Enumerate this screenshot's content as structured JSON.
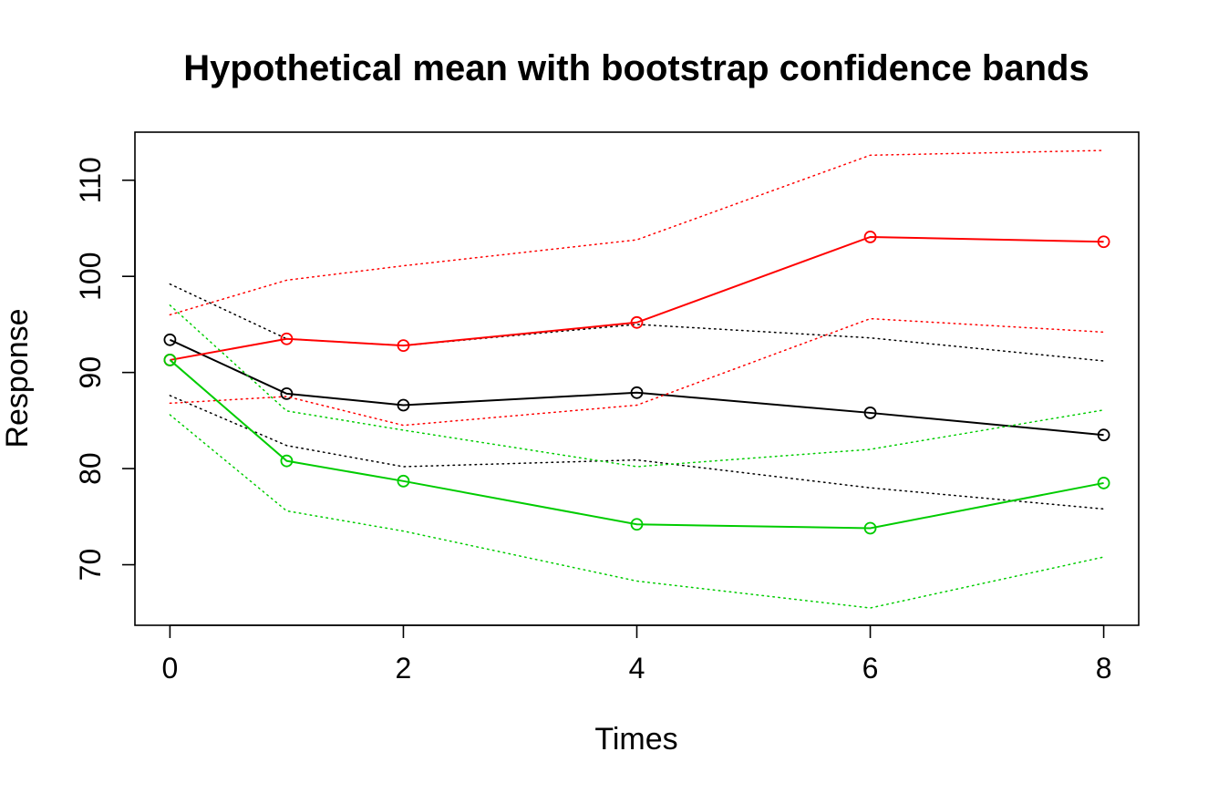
{
  "chart_data": {
    "type": "line",
    "title": "Hypothetical mean with bootstrap confidence bands",
    "xlabel": "Times",
    "ylabel": "Response",
    "xlim": [
      -0.3,
      8.3
    ],
    "ylim": [
      63.7,
      115
    ],
    "x_ticks": [
      0,
      2,
      4,
      6,
      8
    ],
    "y_ticks": [
      70,
      80,
      90,
      100,
      110
    ],
    "grid": false,
    "legend": "none",
    "x": [
      0,
      1,
      2,
      4,
      6,
      8
    ],
    "series": [
      {
        "color": "#000000",
        "mean": [
          93.4,
          87.8,
          86.6,
          87.9,
          85.8,
          83.5
        ],
        "upper": [
          99.2,
          93.5,
          92.8,
          95.0,
          93.6,
          91.2
        ],
        "lower": [
          87.6,
          82.4,
          80.2,
          80.9,
          78.0,
          75.8
        ]
      },
      {
        "color": "#ff0000",
        "mean": [
          91.3,
          93.5,
          92.8,
          95.2,
          104.1,
          103.6
        ],
        "upper": [
          96.0,
          99.6,
          101.1,
          103.8,
          112.6,
          113.1
        ],
        "lower": [
          86.8,
          87.5,
          84.5,
          86.6,
          95.6,
          94.2
        ]
      },
      {
        "color": "#00cc00",
        "mean": [
          91.3,
          80.8,
          78.7,
          74.2,
          73.8,
          78.5
        ],
        "upper": [
          97.0,
          86.0,
          84.0,
          80.2,
          82.0,
          86.1
        ],
        "lower": [
          85.6,
          75.6,
          73.5,
          68.3,
          65.5,
          70.8
        ]
      }
    ]
  }
}
